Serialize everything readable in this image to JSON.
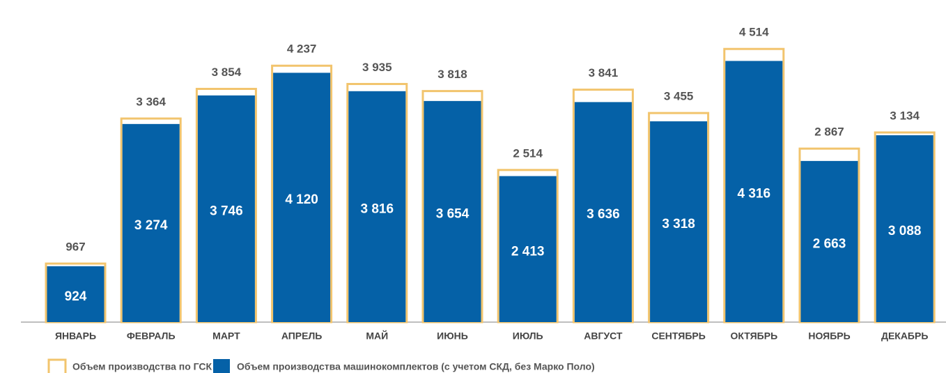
{
  "chart_data": {
    "type": "bar",
    "categories": [
      "ЯНВАРЬ",
      "ФЕВРАЛЬ",
      "МАРТ",
      "АПРЕЛЬ",
      "МАЙ",
      "ИЮНЬ",
      "ИЮЛЬ",
      "АВГУСТ",
      "СЕНТЯБРЬ",
      "ОКТЯБРЬ",
      "НОЯБРЬ",
      "ДЕКАБРЬ"
    ],
    "series": [
      {
        "name": "Объем производства по ГСК",
        "color": "#f2c46d",
        "values": [
          967,
          3364,
          3854,
          4237,
          3935,
          3818,
          2514,
          3841,
          3455,
          4514,
          2867,
          3134
        ],
        "value_labels": [
          "967",
          "3 364",
          "3 854",
          "4 237",
          "3 935",
          "3 818",
          "2 514",
          "3 841",
          "3 455",
          "4 514",
          "2 867",
          "3 134"
        ]
      },
      {
        "name": "Объем производства машинокомплектов (с учетом СКД, без Марко Поло)",
        "color": "#0561a7",
        "values": [
          924,
          3274,
          3746,
          4120,
          3816,
          3654,
          2413,
          3636,
          3318,
          4316,
          2663,
          3088
        ],
        "value_labels": [
          "924",
          "3 274",
          "3 746",
          "4 120",
          "3 816",
          "3 654",
          "2 413",
          "3 636",
          "3 318",
          "4 316",
          "2 663",
          "3 088"
        ]
      }
    ],
    "ylim": [
      0,
      5300
    ]
  }
}
